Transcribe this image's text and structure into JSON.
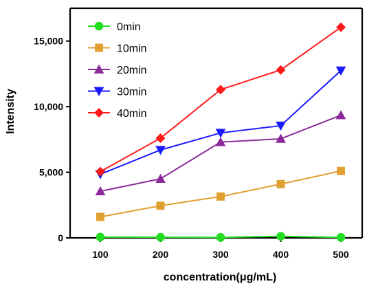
{
  "chart_data": {
    "type": "line",
    "xlabel": "concentration(μg/mL)",
    "ylabel": "Intensity",
    "x": [
      100,
      200,
      300,
      400,
      500
    ],
    "ylim": [
      0,
      17500
    ],
    "yticks": [
      0,
      5000,
      10000,
      15000
    ],
    "ytick_labels": [
      "0",
      "5,000",
      "10,000",
      "15,000"
    ],
    "xtick_labels": [
      "100",
      "200",
      "300",
      "400",
      "500"
    ],
    "grid": false,
    "legend_position": "top-left",
    "series": [
      {
        "name": "0min",
        "color": "#22dd22",
        "marker": "circle",
        "values": [
          60,
          50,
          40,
          120,
          40
        ]
      },
      {
        "name": "10min",
        "color": "#e0a030",
        "marker": "square",
        "values": [
          1600,
          2450,
          3150,
          4100,
          5100
        ]
      },
      {
        "name": "20min",
        "color": "#8b2a9a",
        "marker": "triangle-up",
        "values": [
          3550,
          4500,
          7300,
          7550,
          9350
        ]
      },
      {
        "name": "30min",
        "color": "#1a1aff",
        "marker": "triangle-down",
        "values": [
          4850,
          6700,
          8000,
          8550,
          12750
        ]
      },
      {
        "name": "40min",
        "color": "#ff1a1a",
        "marker": "diamond",
        "values": [
          5050,
          7600,
          11300,
          12800,
          16050
        ]
      }
    ]
  }
}
